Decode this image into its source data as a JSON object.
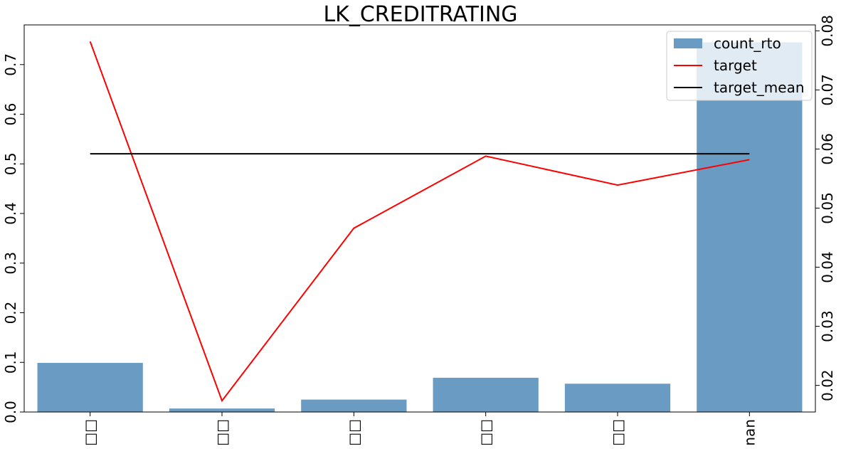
{
  "chart_data": {
    "type": "bar",
    "title": "LK_CREDITRATING",
    "categories": [
      "□□",
      "□□",
      "□□",
      "□□",
      "□□",
      "nan"
    ],
    "series": [
      {
        "name": "count_rto",
        "kind": "bar",
        "axis": "left",
        "color": "#6a9bc3",
        "values": [
          0.099,
          0.007,
          0.025,
          0.069,
          0.057,
          0.745
        ]
      },
      {
        "name": "target",
        "kind": "line",
        "axis": "right",
        "color": "#ff0000",
        "values": [
          0.0782,
          0.0174,
          0.0466,
          0.0588,
          0.0539,
          0.0582
        ]
      },
      {
        "name": "target_mean",
        "kind": "line",
        "axis": "right",
        "color": "#000000",
        "values": [
          0.0592,
          0.0592,
          0.0592,
          0.0592,
          0.0592,
          0.0592
        ]
      }
    ],
    "left_axis": {
      "ylim": [
        0,
        0.78
      ],
      "ticks": [
        "0.0",
        "0.1",
        "0.2",
        "0.3",
        "0.4",
        "0.5",
        "0.6",
        "0.7"
      ]
    },
    "right_axis": {
      "ylim": [
        0.0155,
        0.081
      ],
      "ticks": [
        "0.02",
        "0.03",
        "0.04",
        "0.05",
        "0.06",
        "0.07",
        "0.08"
      ]
    },
    "legend": {
      "placement": "top-right",
      "entries": [
        "count_rto",
        "target",
        "target_mean"
      ]
    },
    "grid": false
  }
}
